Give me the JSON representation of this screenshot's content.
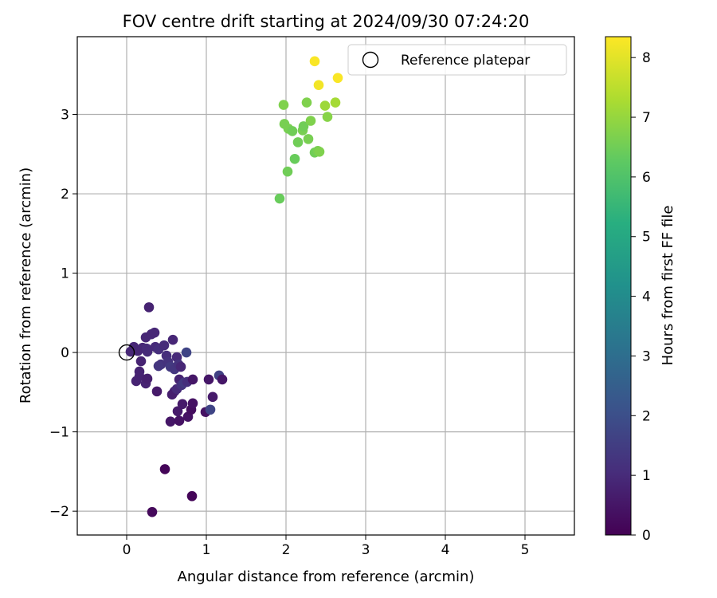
{
  "chart_data": {
    "type": "scatter",
    "title": "FOV centre drift starting at 2024/09/30 07:24:20",
    "xlabel": "Angular distance from reference (arcmin)",
    "ylabel": "Rotation from reference (arcmin)",
    "xlim": [
      -0.62,
      5.62
    ],
    "ylim": [
      -2.3,
      3.98
    ],
    "xticks": [
      0,
      1,
      2,
      3,
      4,
      5
    ],
    "yticks": [
      -2,
      -1,
      0,
      1,
      2,
      3
    ],
    "grid": true,
    "legend": {
      "position": "upper-right",
      "entries": [
        "Reference platepar"
      ]
    },
    "reference_point": {
      "x": 0,
      "y": 0
    },
    "colorbar": {
      "label": "Hours from first FF file",
      "colormap": "viridis",
      "range": [
        0,
        8.35
      ],
      "ticks": [
        0,
        1,
        2,
        3,
        4,
        5,
        6,
        7,
        8
      ]
    },
    "points": [
      {
        "x": 0.05,
        "y": 0.01,
        "c": 0.9
      },
      {
        "x": 0.09,
        "y": 0.07,
        "c": 0.9
      },
      {
        "x": 0.14,
        "y": 0.02,
        "c": 0.9
      },
      {
        "x": 0.18,
        "y": -0.11,
        "c": 0.8
      },
      {
        "x": 0.12,
        "y": -0.36,
        "c": 0.8
      },
      {
        "x": 0.16,
        "y": -0.24,
        "c": 0.8
      },
      {
        "x": 0.16,
        "y": -0.3,
        "c": 0.8
      },
      {
        "x": 0.2,
        "y": 0.06,
        "c": 0.9
      },
      {
        "x": 0.25,
        "y": 0.05,
        "c": 1.0
      },
      {
        "x": 0.24,
        "y": 0.19,
        "c": 0.9
      },
      {
        "x": 0.28,
        "y": 0.57,
        "c": 0.8
      },
      {
        "x": 0.31,
        "y": 0.23,
        "c": 0.9
      },
      {
        "x": 0.35,
        "y": 0.25,
        "c": 0.9
      },
      {
        "x": 0.26,
        "y": 0.01,
        "c": 1.0
      },
      {
        "x": 0.24,
        "y": -0.39,
        "c": 0.8
      },
      {
        "x": 0.26,
        "y": -0.33,
        "c": 0.7
      },
      {
        "x": 0.38,
        "y": -0.49,
        "c": 0.6
      },
      {
        "x": 0.36,
        "y": 0.07,
        "c": 1.0
      },
      {
        "x": 0.4,
        "y": 0.04,
        "c": 1.1
      },
      {
        "x": 0.43,
        "y": -0.15,
        "c": 1.2
      },
      {
        "x": 0.4,
        "y": -0.17,
        "c": 1.3
      },
      {
        "x": 0.47,
        "y": 0.09,
        "c": 1.0
      },
      {
        "x": 0.5,
        "y": -0.04,
        "c": 1.1
      },
      {
        "x": 0.52,
        "y": -0.12,
        "c": 1.2
      },
      {
        "x": 0.55,
        "y": -0.18,
        "c": 1.4
      },
      {
        "x": 0.58,
        "y": 0.16,
        "c": 0.9
      },
      {
        "x": 0.6,
        "y": -0.21,
        "c": 1.3
      },
      {
        "x": 0.63,
        "y": -0.06,
        "c": 1.0
      },
      {
        "x": 0.65,
        "y": -0.15,
        "c": 1.2
      },
      {
        "x": 0.68,
        "y": -0.18,
        "c": 0.9
      },
      {
        "x": 0.6,
        "y": -0.49,
        "c": 0.8
      },
      {
        "x": 0.57,
        "y": -0.53,
        "c": 0.7
      },
      {
        "x": 0.63,
        "y": -0.46,
        "c": 1.0
      },
      {
        "x": 0.66,
        "y": -0.34,
        "c": 0.8
      },
      {
        "x": 0.69,
        "y": -0.41,
        "c": 1.2
      },
      {
        "x": 0.72,
        "y": -0.38,
        "c": 1.4
      },
      {
        "x": 0.75,
        "y": 0.0,
        "c": 1.7
      },
      {
        "x": 0.76,
        "y": -0.37,
        "c": 1.1
      },
      {
        "x": 0.7,
        "y": -0.65,
        "c": 0.6
      },
      {
        "x": 0.64,
        "y": -0.74,
        "c": 0.6
      },
      {
        "x": 0.55,
        "y": -0.87,
        "c": 0.5
      },
      {
        "x": 0.66,
        "y": -0.86,
        "c": 0.4
      },
      {
        "x": 0.77,
        "y": -0.81,
        "c": 0.4
      },
      {
        "x": 0.81,
        "y": -0.72,
        "c": 0.3
      },
      {
        "x": 0.83,
        "y": -0.64,
        "c": 0.4
      },
      {
        "x": 0.83,
        "y": -0.34,
        "c": 0.5
      },
      {
        "x": 0.99,
        "y": -0.75,
        "c": 0.4
      },
      {
        "x": 1.03,
        "y": -0.34,
        "c": 0.5
      },
      {
        "x": 1.05,
        "y": -0.72,
        "c": 1.7
      },
      {
        "x": 1.08,
        "y": -0.56,
        "c": 0.6
      },
      {
        "x": 1.16,
        "y": -0.29,
        "c": 1.6
      },
      {
        "x": 1.2,
        "y": -0.34,
        "c": 0.5
      },
      {
        "x": 0.48,
        "y": -1.47,
        "c": 0.1
      },
      {
        "x": 0.82,
        "y": -1.81,
        "c": 0.1
      },
      {
        "x": 0.32,
        "y": -2.01,
        "c": 0.2
      },
      {
        "x": 1.92,
        "y": 1.94,
        "c": 6.4
      },
      {
        "x": 2.02,
        "y": 2.28,
        "c": 6.5
      },
      {
        "x": 2.11,
        "y": 2.44,
        "c": 6.4
      },
      {
        "x": 1.97,
        "y": 3.12,
        "c": 6.7
      },
      {
        "x": 1.98,
        "y": 2.88,
        "c": 6.6
      },
      {
        "x": 2.03,
        "y": 2.82,
        "c": 6.6
      },
      {
        "x": 2.08,
        "y": 2.79,
        "c": 6.5
      },
      {
        "x": 2.15,
        "y": 2.65,
        "c": 6.5
      },
      {
        "x": 2.21,
        "y": 2.8,
        "c": 6.6
      },
      {
        "x": 2.22,
        "y": 2.85,
        "c": 6.5
      },
      {
        "x": 2.26,
        "y": 3.15,
        "c": 6.7
      },
      {
        "x": 2.28,
        "y": 2.69,
        "c": 6.6
      },
      {
        "x": 2.31,
        "y": 2.92,
        "c": 6.7
      },
      {
        "x": 2.36,
        "y": 2.52,
        "c": 6.5
      },
      {
        "x": 2.4,
        "y": 2.54,
        "c": 6.6
      },
      {
        "x": 2.42,
        "y": 2.53,
        "c": 6.7
      },
      {
        "x": 2.49,
        "y": 3.11,
        "c": 7.1
      },
      {
        "x": 2.52,
        "y": 2.97,
        "c": 6.8
      },
      {
        "x": 2.62,
        "y": 3.15,
        "c": 7.2
      },
      {
        "x": 2.36,
        "y": 3.67,
        "c": 8.3
      },
      {
        "x": 2.41,
        "y": 3.37,
        "c": 8.2
      },
      {
        "x": 2.65,
        "y": 3.46,
        "c": 8.3
      }
    ]
  }
}
